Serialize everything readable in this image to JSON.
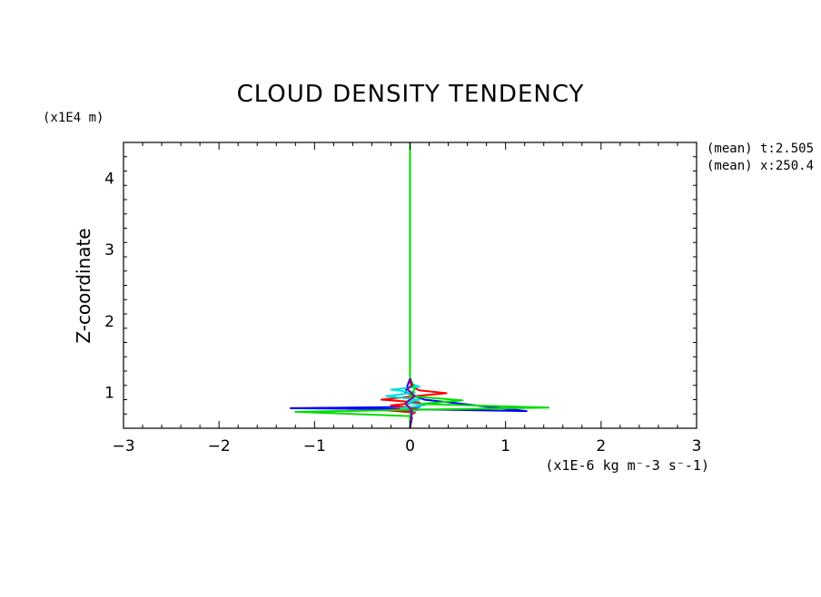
{
  "chart_data": {
    "type": "line",
    "title": "CLOUD DENSITY TENDENCY",
    "xlabel": "(x1E-6 kg m⁻-3 s⁻-1)",
    "ylabel": "Z-coordinate",
    "y_units": "(x1E4 m)",
    "annotations": [
      "(mean) t:2.505",
      "(mean) x:250.4"
    ],
    "xlim": [
      -3,
      3
    ],
    "ylim": [
      0.5,
      4.5
    ],
    "x_ticks": [
      -3,
      -2,
      -1,
      0,
      1,
      2,
      3
    ],
    "x_tick_labels": [
      "−3",
      "−2",
      "−1",
      "0",
      "1",
      "2",
      "3"
    ],
    "y_ticks": [
      1,
      2,
      3,
      4
    ],
    "y_tick_labels": [
      "1",
      "2",
      "3",
      "4"
    ],
    "grid": false,
    "colors": {
      "blue": "#0000ff",
      "red": "#ff0000",
      "cyan": "#00e0e0",
      "green": "#00dd00",
      "purple": "#800080"
    },
    "series": [
      {
        "color": "#0000ff",
        "x": [
          0,
          0.02,
          0.0,
          0.05,
          -0.08,
          0.1,
          -0.05,
          0.1,
          -1.25,
          0.3,
          1.22,
          0.15,
          -0.05,
          0,
          0
        ],
        "y": [
          0.5,
          0.65,
          0.7,
          0.72,
          0.74,
          0.76,
          0.78,
          0.8,
          0.78,
          0.76,
          0.74,
          0.9,
          1.0,
          1.2,
          1.45
        ]
      },
      {
        "color": "#ff0000",
        "x": [
          0,
          0.0,
          0.05,
          -0.25,
          0.05,
          -0.2,
          0.1,
          -0.3,
          0.05,
          0.38,
          0.1,
          0.02,
          0,
          0
        ],
        "y": [
          0.5,
          0.68,
          0.72,
          0.75,
          0.78,
          0.82,
          0.86,
          0.9,
          0.95,
          0.99,
          1.03,
          1.08,
          1.15,
          1.25
        ]
      },
      {
        "color": "#00e0e0",
        "x": [
          0,
          0.0,
          0.05,
          -0.1,
          0.15,
          -0.05,
          0.1,
          -0.25,
          0.05,
          -0.2,
          0.1,
          0.02,
          0
        ],
        "y": [
          0.5,
          0.7,
          0.75,
          0.78,
          0.82,
          0.86,
          0.9,
          0.95,
          1.0,
          1.04,
          1.08,
          1.12,
          1.2
        ]
      },
      {
        "color": "#00dd00",
        "x": [
          0,
          0.0,
          -1.2,
          1.45,
          0.1,
          0.55,
          0.0,
          0.05,
          0,
          0,
          0
        ],
        "y": [
          0.5,
          0.67,
          0.73,
          0.79,
          0.84,
          0.89,
          0.95,
          1.05,
          1.2,
          3.0,
          4.5
        ]
      },
      {
        "color": "#800080",
        "x": [
          0,
          0.02,
          -0.05,
          0.05,
          -0.03,
          0.02,
          0
        ],
        "y": [
          0.5,
          0.75,
          0.85,
          0.95,
          1.05,
          1.1,
          1.2
        ]
      }
    ]
  }
}
